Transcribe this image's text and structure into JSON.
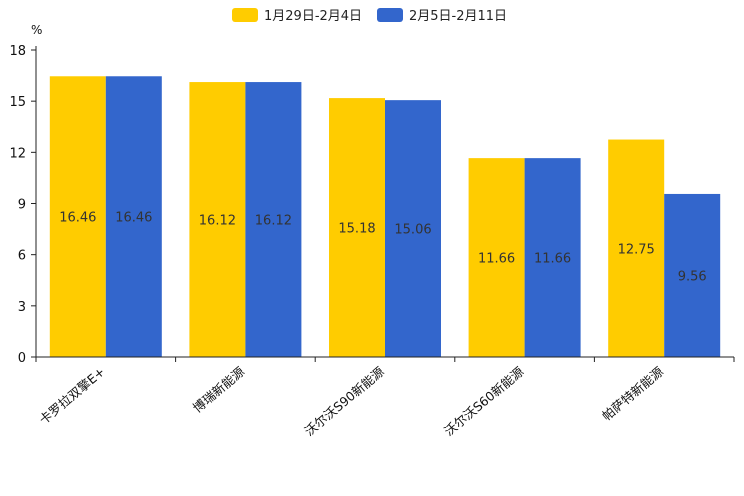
{
  "chart_data": {
    "type": "bar",
    "title": "",
    "xlabel": "",
    "ylabel": "%",
    "ylim": [
      0,
      18
    ],
    "yticks": [
      0,
      3,
      6,
      9,
      12,
      15,
      18
    ],
    "grid": false,
    "legend_position": "top-center",
    "categories": [
      "卡罗拉双擎E+",
      "博瑞新能源",
      "沃尔沃S90新能源",
      "沃尔沃S60新能源",
      "帕萨特新能源"
    ],
    "series": [
      {
        "name": "1月29日-2月4日",
        "color": "#ffcc00",
        "values": [
          16.46,
          16.12,
          15.18,
          11.66,
          12.75
        ]
      },
      {
        "name": "2月5日-2月11日",
        "color": "#3366cc",
        "values": [
          16.46,
          16.12,
          15.06,
          11.66,
          9.56
        ]
      }
    ]
  }
}
